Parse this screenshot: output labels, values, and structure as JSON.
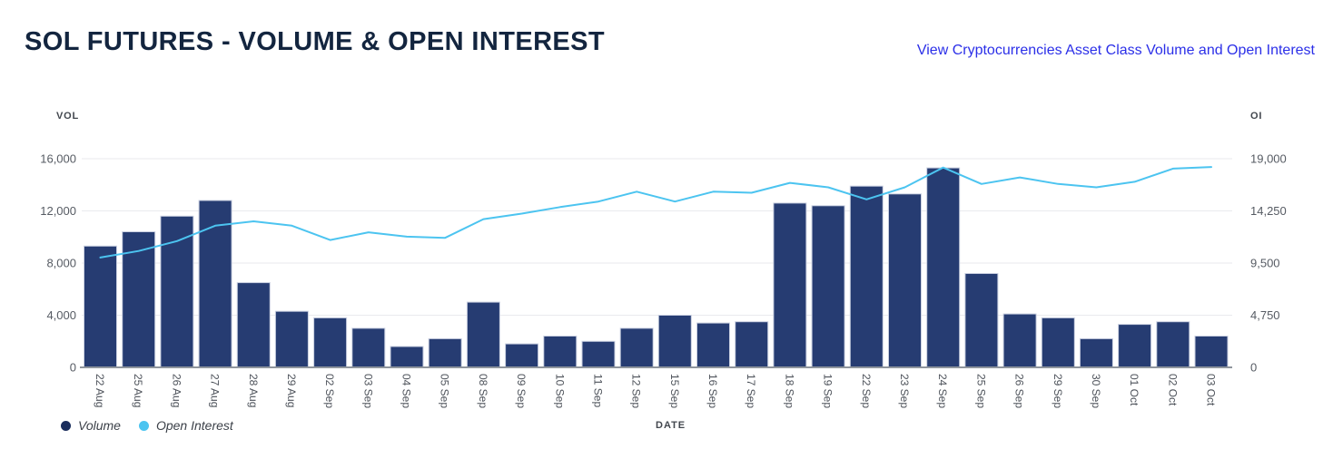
{
  "header": {
    "title": "SOL FUTURES - VOLUME & OPEN INTEREST",
    "link": "View Cryptocurrencies Asset Class Volume and Open Interest"
  },
  "chart": {
    "left_axis_label": "VOL",
    "right_axis_label": "OI",
    "x_axis_label": "DATE",
    "legend": [
      {
        "label": "Volume",
        "color": "#1a2d5c"
      },
      {
        "label": "Open Interest",
        "color": "#4cc4f0"
      }
    ]
  },
  "colors": {
    "bar_fill": "#263c72",
    "bar_stroke": "#c9cfe0",
    "line": "#4cc4f0",
    "grid": "#e9eaee",
    "axis_line": "#8f959d",
    "tick_text": "#565b63",
    "date_text": "#4d525a"
  },
  "chart_data": {
    "type": "bar+line",
    "title": "SOL FUTURES - VOLUME & OPEN INTEREST",
    "xlabel": "DATE",
    "grid": true,
    "legend_position": "bottom-left",
    "categories": [
      "22 Aug",
      "25 Aug",
      "26 Aug",
      "27 Aug",
      "28 Aug",
      "29 Aug",
      "02 Sep",
      "03 Sep",
      "04 Sep",
      "05 Sep",
      "08 Sep",
      "09 Sep",
      "10 Sep",
      "11 Sep",
      "12 Sep",
      "15 Sep",
      "16 Sep",
      "17 Sep",
      "18 Sep",
      "19 Sep",
      "22 Sep",
      "23 Sep",
      "24 Sep",
      "25 Sep",
      "26 Sep",
      "29 Sep",
      "30 Sep",
      "01 Oct",
      "02 Oct",
      "03 Oct"
    ],
    "series": [
      {
        "name": "Volume",
        "type": "bar",
        "axis": "left",
        "values": [
          9300,
          10400,
          11600,
          12800,
          6500,
          4300,
          3800,
          3000,
          1600,
          2200,
          5000,
          1800,
          2400,
          2000,
          3000,
          4000,
          3400,
          3500,
          12600,
          12400,
          13900,
          13300,
          15300,
          7200,
          4100,
          3800,
          2200,
          3300,
          3500,
          2400
        ]
      },
      {
        "name": "Open Interest",
        "type": "line",
        "axis": "right",
        "values": [
          10000,
          10600,
          11500,
          12900,
          13300,
          12900,
          11600,
          12300,
          11900,
          11800,
          13500,
          14000,
          14600,
          15100,
          16000,
          15100,
          16000,
          15900,
          16800,
          16400,
          15300,
          16400,
          18200,
          16700,
          17300,
          16700,
          16400,
          16900,
          18100,
          18250
        ]
      }
    ],
    "left_axis": {
      "label": "VOL",
      "range": [
        0,
        16000
      ],
      "ticks": [
        "16,000",
        "12,000",
        "8,000",
        "4,000",
        "0"
      ]
    },
    "right_axis": {
      "label": "OI",
      "range": [
        0,
        19000
      ],
      "ticks": [
        "19,000",
        "14,250",
        "9,500",
        "4,750",
        "0"
      ]
    }
  }
}
